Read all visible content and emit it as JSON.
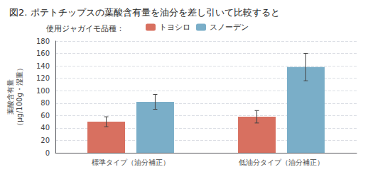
{
  "chart_data": {
    "type": "bar",
    "title": "図2. ポテトチップスの葉酸含有量を油分を差し引いて比較すると",
    "legend_title": "使用ジャガイモ品種：",
    "categories": [
      "標準タイプ（油分補正）",
      "低油分タイプ（油分補正）"
    ],
    "series": [
      {
        "name": "トヨシロ",
        "color": "#d87060",
        "values": [
          50,
          58
        ],
        "errors": [
          8,
          10
        ]
      },
      {
        "name": "スノーデン",
        "color": "#7aaec8",
        "values": [
          82,
          138
        ],
        "errors": [
          12,
          22
        ]
      }
    ],
    "ylabel": "葉酸含有量\n（μg/100g・湿重）",
    "ylim": [
      0,
      180
    ],
    "yticks": [
      0,
      20,
      40,
      60,
      80,
      100,
      120,
      140,
      160,
      180
    ],
    "grid": true,
    "legend": "top"
  }
}
